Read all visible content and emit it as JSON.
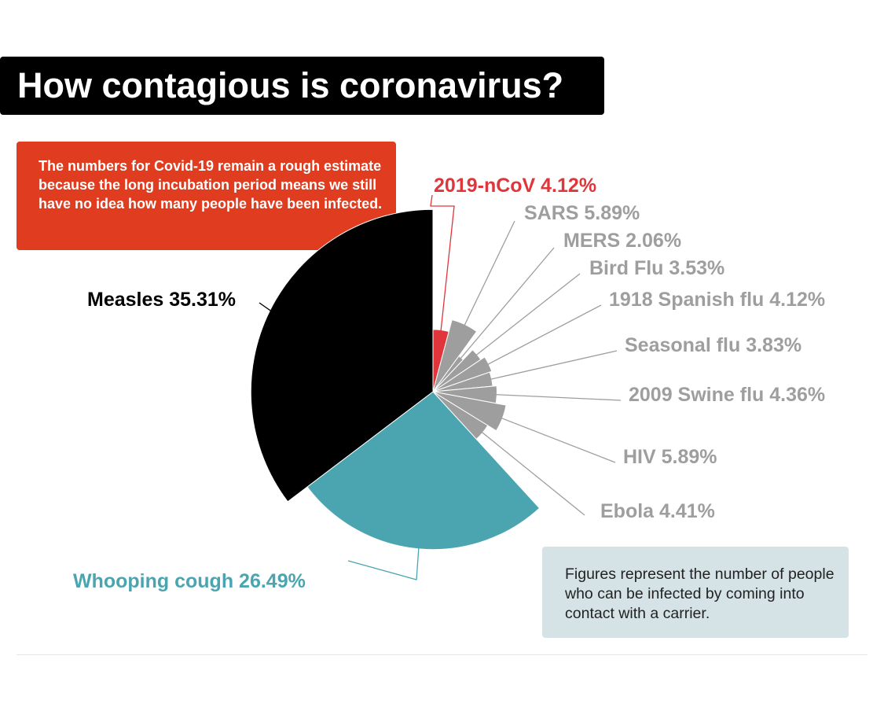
{
  "header": {
    "title": "How contagious is coronavirus?"
  },
  "note": {
    "text": "The numbers for Covid-19 remain a rough estimate because the long incubation period means we still have no idea how many people have been infected."
  },
  "footnote": {
    "text": "Figures represent the number of people who can be infected by coming into contact with a carrier."
  },
  "colors": {
    "title_bg": "#000000",
    "note_bg": "#e03c1f",
    "info_bg": "#d5e3e7",
    "measles": "#000000",
    "whooping_cough": "#4ba5b0",
    "ncov": "#e0353b",
    "others": "#9e9e9e"
  },
  "chart_data": {
    "type": "pie",
    "variant": "polar-area",
    "title": "How contagious is coronavirus?",
    "unit": "%",
    "slices": [
      {
        "name": "2019-nCoV",
        "value": 4.12,
        "label": "2019-nCoV 4.12%",
        "color": "#e0353b"
      },
      {
        "name": "SARS",
        "value": 5.89,
        "label": "SARS 5.89%",
        "color": "#9e9e9e"
      },
      {
        "name": "MERS",
        "value": 2.06,
        "label": "MERS 2.06%",
        "color": "#9e9e9e"
      },
      {
        "name": "Bird Flu",
        "value": 3.53,
        "label": "Bird Flu 3.53%",
        "color": "#9e9e9e"
      },
      {
        "name": "1918 Spanish flu",
        "value": 4.12,
        "label": "1918 Spanish flu 4.12%",
        "color": "#9e9e9e"
      },
      {
        "name": "Seasonal flu",
        "value": 3.83,
        "label": "Seasonal flu 3.83%",
        "color": "#9e9e9e"
      },
      {
        "name": "2009 Swine flu",
        "value": 4.36,
        "label": "2009 Swine flu 4.36%",
        "color": "#9e9e9e"
      },
      {
        "name": "HIV",
        "value": 5.89,
        "label": "HIV 5.89%",
        "color": "#9e9e9e"
      },
      {
        "name": "Ebola",
        "value": 4.41,
        "label": "Ebola 4.41%",
        "color": "#9e9e9e"
      },
      {
        "name": "Whooping cough",
        "value": 26.49,
        "label": "Whooping cough 26.49%",
        "color": "#4ba5b0"
      },
      {
        "name": "Measles",
        "value": 35.31,
        "label": "Measles 35.31%",
        "color": "#000000"
      }
    ]
  }
}
